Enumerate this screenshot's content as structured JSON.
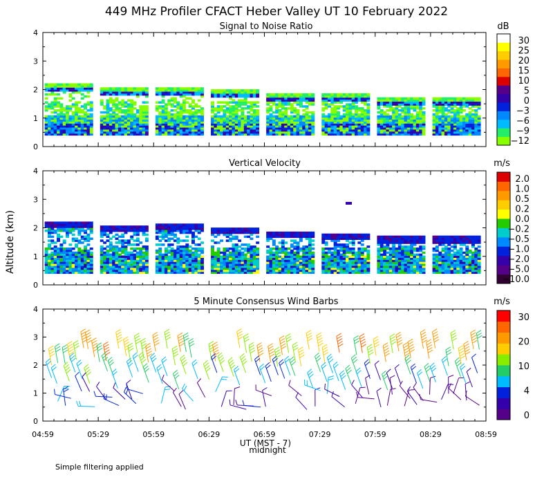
{
  "title": "449 MHz Profiler CFACT Heber Valley UT 10 February 2022",
  "ylabel": "Altitude (km)",
  "xlabel": "UT  (MST - 7)",
  "midnight_label": "midnight",
  "footer": "Simple filtering applied",
  "x_ticks": [
    "04:59",
    "05:29",
    "05:59",
    "06:29",
    "06:59",
    "07:29",
    "07:59",
    "08:29",
    "08:59"
  ],
  "y_ticks": [
    "0",
    "1",
    "2",
    "3",
    "4"
  ],
  "colors": {
    "snr_scale": [
      "#88ff00",
      "#22ee66",
      "#00bbff",
      "#0088ff",
      "#0022dd",
      "#3300aa",
      "#550088",
      "#dd0000",
      "#ff6600",
      "#ff9900",
      "#ffcc00",
      "#ffff00",
      "#ffffff"
    ],
    "vel_scale": [
      "#330033",
      "#550088",
      "#3300aa",
      "#0022dd",
      "#0088ff",
      "#00cccc",
      "#22cc00",
      "#ffff00",
      "#ffcc00",
      "#ff9900",
      "#ff6600",
      "#dd0000"
    ],
    "wind_scale": [
      "#550088",
      "#3300aa",
      "#0022dd",
      "#00bbff",
      "#22cc66",
      "#88ee00",
      "#ffcc00",
      "#ff9900",
      "#ff6600",
      "#ff0000"
    ]
  },
  "chart_data": [
    {
      "type": "heatmap",
      "title": "Signal to Noise Ratio",
      "units": "dB",
      "xlabel": "UT  (MST - 7)",
      "ylabel": "Altitude (km)",
      "xlim": [
        "04:59",
        "08:59"
      ],
      "ylim": [
        0,
        4
      ],
      "colorbar_labels": [
        "30",
        "25",
        "20",
        "15",
        "10",
        "5",
        "0",
        "−3",
        "−6",
        "−9",
        "−12"
      ],
      "blocks": [
        {
          "start": "05:00",
          "end": "05:26",
          "top_km": 2.2
        },
        {
          "start": "05:30",
          "end": "05:56",
          "top_km": 2.05
        },
        {
          "start": "06:00",
          "end": "06:26",
          "top_km": 2.05
        },
        {
          "start": "06:30",
          "end": "06:56",
          "top_km": 2.0
        },
        {
          "start": "07:00",
          "end": "07:26",
          "top_km": 1.85
        },
        {
          "start": "07:30",
          "end": "07:56",
          "top_km": 1.85
        },
        {
          "start": "08:00",
          "end": "08:26",
          "top_km": 1.7
        },
        {
          "start": "08:30",
          "end": "08:56",
          "top_km": 1.7
        }
      ]
    },
    {
      "type": "heatmap",
      "title": "Vertical Velocity",
      "units": "m/s",
      "ylim": [
        0,
        4
      ],
      "colorbar_labels": [
        "2.0",
        "1.0",
        "0.5",
        "0.2",
        "0.0",
        "−0.2",
        "−0.5",
        "−1.0",
        "−2.0",
        "−5.0",
        "−10.0"
      ],
      "blocks": [
        {
          "start": "05:00",
          "end": "05:26",
          "top_km": 2.2
        },
        {
          "start": "05:30",
          "end": "05:56",
          "top_km": 2.1
        },
        {
          "start": "06:00",
          "end": "06:26",
          "top_km": 2.15
        },
        {
          "start": "06:30",
          "end": "06:56",
          "top_km": 2.0
        },
        {
          "start": "07:00",
          "end": "07:26",
          "top_km": 1.85
        },
        {
          "start": "07:30",
          "end": "07:56",
          "top_km": 1.8
        },
        {
          "start": "08:00",
          "end": "08:26",
          "top_km": 1.7
        },
        {
          "start": "08:30",
          "end": "08:56",
          "top_km": 1.7
        }
      ]
    },
    {
      "type": "scatter",
      "title": "5 Minute Consensus Wind Barbs",
      "units": "m/s",
      "ylim": [
        0,
        4
      ],
      "colorbar_labels": [
        "30",
        "20",
        "10",
        "4",
        "0"
      ],
      "height_levels_km": [
        2.3,
        1.45,
        0.75
      ]
    }
  ]
}
